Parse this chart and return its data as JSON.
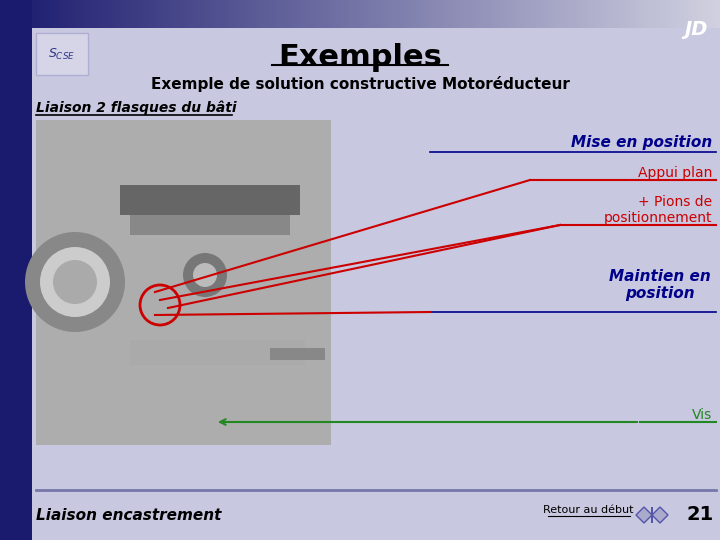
{
  "title": "Exemples",
  "subtitle": "Exemple de solution constructive Motoréducteur",
  "liaison_title": "Liaison 2 flasques du bâti",
  "mise_en_position": "Mise en position",
  "appui_plan": "Appui plan",
  "pions": "+ Pions de\npositionnement",
  "maintien": "Maintien en\nposition",
  "vis": "Vis",
  "liaison_encastrement": "Liaison encastrement",
  "retour": "Retour au début",
  "page_num": "21",
  "bg_color": "#c8c8e0",
  "red_color": "#cc0000",
  "green_color": "#228822",
  "dark_blue": "#00008B",
  "header_dark": "#1a1a6e",
  "nav_fill": "#aaaacc",
  "nav_edge": "#5555aa"
}
